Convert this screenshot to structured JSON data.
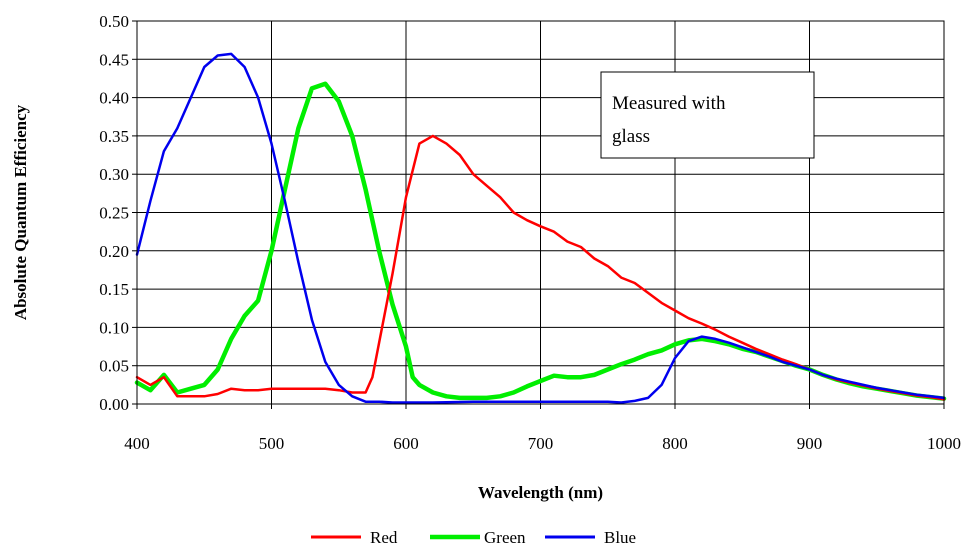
{
  "chart_data": {
    "type": "line",
    "xlabel": "Wavelength (nm)",
    "ylabel": "Absolute Quantum Efficiency",
    "xlim": [
      400,
      1000
    ],
    "ylim": [
      0,
      0.5
    ],
    "x_ticks": [
      400,
      500,
      600,
      700,
      800,
      900,
      1000
    ],
    "y_ticks": [
      "0.00",
      "0.05",
      "0.10",
      "0.15",
      "0.20",
      "0.25",
      "0.30",
      "0.35",
      "0.40",
      "0.45",
      "0.50"
    ],
    "grid": true,
    "legend_position": "bottom",
    "annotation": [
      "Measured with",
      "glass"
    ],
    "series": [
      {
        "name": "Red",
        "color": "#ff0000",
        "points": [
          [
            400,
            0.035
          ],
          [
            410,
            0.025
          ],
          [
            420,
            0.035
          ],
          [
            430,
            0.01
          ],
          [
            440,
            0.01
          ],
          [
            450,
            0.01
          ],
          [
            460,
            0.013
          ],
          [
            470,
            0.02
          ],
          [
            480,
            0.018
          ],
          [
            490,
            0.018
          ],
          [
            500,
            0.02
          ],
          [
            510,
            0.02
          ],
          [
            520,
            0.02
          ],
          [
            530,
            0.02
          ],
          [
            540,
            0.02
          ],
          [
            550,
            0.018
          ],
          [
            560,
            0.015
          ],
          [
            570,
            0.015
          ],
          [
            575,
            0.035
          ],
          [
            580,
            0.08
          ],
          [
            590,
            0.17
          ],
          [
            600,
            0.27
          ],
          [
            610,
            0.34
          ],
          [
            620,
            0.35
          ],
          [
            630,
            0.34
          ],
          [
            640,
            0.325
          ],
          [
            650,
            0.3
          ],
          [
            660,
            0.285
          ],
          [
            670,
            0.27
          ],
          [
            680,
            0.25
          ],
          [
            690,
            0.24
          ],
          [
            700,
            0.232
          ],
          [
            710,
            0.225
          ],
          [
            720,
            0.212
          ],
          [
            730,
            0.205
          ],
          [
            740,
            0.19
          ],
          [
            750,
            0.18
          ],
          [
            760,
            0.165
          ],
          [
            770,
            0.158
          ],
          [
            780,
            0.145
          ],
          [
            790,
            0.132
          ],
          [
            800,
            0.122
          ],
          [
            810,
            0.112
          ],
          [
            820,
            0.105
          ],
          [
            830,
            0.097
          ],
          [
            840,
            0.088
          ],
          [
            850,
            0.08
          ],
          [
            860,
            0.072
          ],
          [
            870,
            0.065
          ],
          [
            880,
            0.058
          ],
          [
            890,
            0.052
          ],
          [
            900,
            0.045
          ],
          [
            910,
            0.038
          ],
          [
            920,
            0.032
          ],
          [
            930,
            0.028
          ],
          [
            940,
            0.024
          ],
          [
            950,
            0.02
          ],
          [
            960,
            0.017
          ],
          [
            970,
            0.014
          ],
          [
            980,
            0.011
          ],
          [
            990,
            0.009
          ],
          [
            1000,
            0.006
          ]
        ]
      },
      {
        "name": "Green",
        "color": "#00ee00",
        "points": [
          [
            400,
            0.028
          ],
          [
            410,
            0.018
          ],
          [
            420,
            0.038
          ],
          [
            430,
            0.015
          ],
          [
            440,
            0.02
          ],
          [
            450,
            0.025
          ],
          [
            460,
            0.045
          ],
          [
            470,
            0.085
          ],
          [
            480,
            0.115
          ],
          [
            490,
            0.135
          ],
          [
            500,
            0.2
          ],
          [
            510,
            0.28
          ],
          [
            520,
            0.36
          ],
          [
            530,
            0.412
          ],
          [
            540,
            0.418
          ],
          [
            550,
            0.395
          ],
          [
            560,
            0.35
          ],
          [
            570,
            0.28
          ],
          [
            580,
            0.2
          ],
          [
            590,
            0.13
          ],
          [
            600,
            0.075
          ],
          [
            605,
            0.035
          ],
          [
            610,
            0.025
          ],
          [
            620,
            0.015
          ],
          [
            630,
            0.01
          ],
          [
            640,
            0.008
          ],
          [
            650,
            0.008
          ],
          [
            660,
            0.008
          ],
          [
            670,
            0.01
          ],
          [
            680,
            0.015
          ],
          [
            690,
            0.023
          ],
          [
            700,
            0.03
          ],
          [
            710,
            0.037
          ],
          [
            720,
            0.035
          ],
          [
            730,
            0.035
          ],
          [
            740,
            0.038
          ],
          [
            750,
            0.045
          ],
          [
            760,
            0.052
          ],
          [
            770,
            0.058
          ],
          [
            780,
            0.065
          ],
          [
            790,
            0.07
          ],
          [
            800,
            0.078
          ],
          [
            810,
            0.083
          ],
          [
            820,
            0.085
          ],
          [
            830,
            0.082
          ],
          [
            840,
            0.078
          ],
          [
            850,
            0.072
          ],
          [
            860,
            0.068
          ],
          [
            870,
            0.062
          ],
          [
            880,
            0.056
          ],
          [
            890,
            0.05
          ],
          [
            900,
            0.045
          ],
          [
            910,
            0.038
          ],
          [
            920,
            0.032
          ],
          [
            930,
            0.027
          ],
          [
            940,
            0.023
          ],
          [
            950,
            0.02
          ],
          [
            960,
            0.017
          ],
          [
            970,
            0.014
          ],
          [
            980,
            0.011
          ],
          [
            990,
            0.009
          ],
          [
            1000,
            0.007
          ]
        ]
      },
      {
        "name": "Blue",
        "color": "#0000ee",
        "points": [
          [
            400,
            0.195
          ],
          [
            410,
            0.265
          ],
          [
            420,
            0.33
          ],
          [
            430,
            0.36
          ],
          [
            440,
            0.4
          ],
          [
            450,
            0.44
          ],
          [
            460,
            0.455
          ],
          [
            470,
            0.457
          ],
          [
            480,
            0.44
          ],
          [
            490,
            0.4
          ],
          [
            500,
            0.34
          ],
          [
            510,
            0.265
          ],
          [
            520,
            0.185
          ],
          [
            530,
            0.11
          ],
          [
            540,
            0.055
          ],
          [
            550,
            0.025
          ],
          [
            560,
            0.01
          ],
          [
            570,
            0.003
          ],
          [
            580,
            0.003
          ],
          [
            590,
            0.002
          ],
          [
            600,
            0.002
          ],
          [
            620,
            0.002
          ],
          [
            650,
            0.003
          ],
          [
            700,
            0.003
          ],
          [
            750,
            0.003
          ],
          [
            760,
            0.002
          ],
          [
            770,
            0.004
          ],
          [
            780,
            0.008
          ],
          [
            790,
            0.025
          ],
          [
            800,
            0.06
          ],
          [
            810,
            0.082
          ],
          [
            820,
            0.088
          ],
          [
            830,
            0.085
          ],
          [
            840,
            0.08
          ],
          [
            850,
            0.074
          ],
          [
            860,
            0.068
          ],
          [
            870,
            0.062
          ],
          [
            880,
            0.055
          ],
          [
            890,
            0.05
          ],
          [
            900,
            0.045
          ],
          [
            910,
            0.038
          ],
          [
            920,
            0.033
          ],
          [
            930,
            0.029
          ],
          [
            940,
            0.025
          ],
          [
            950,
            0.021
          ],
          [
            960,
            0.018
          ],
          [
            970,
            0.015
          ],
          [
            980,
            0.012
          ],
          [
            990,
            0.01
          ],
          [
            1000,
            0.008
          ]
        ]
      }
    ]
  }
}
